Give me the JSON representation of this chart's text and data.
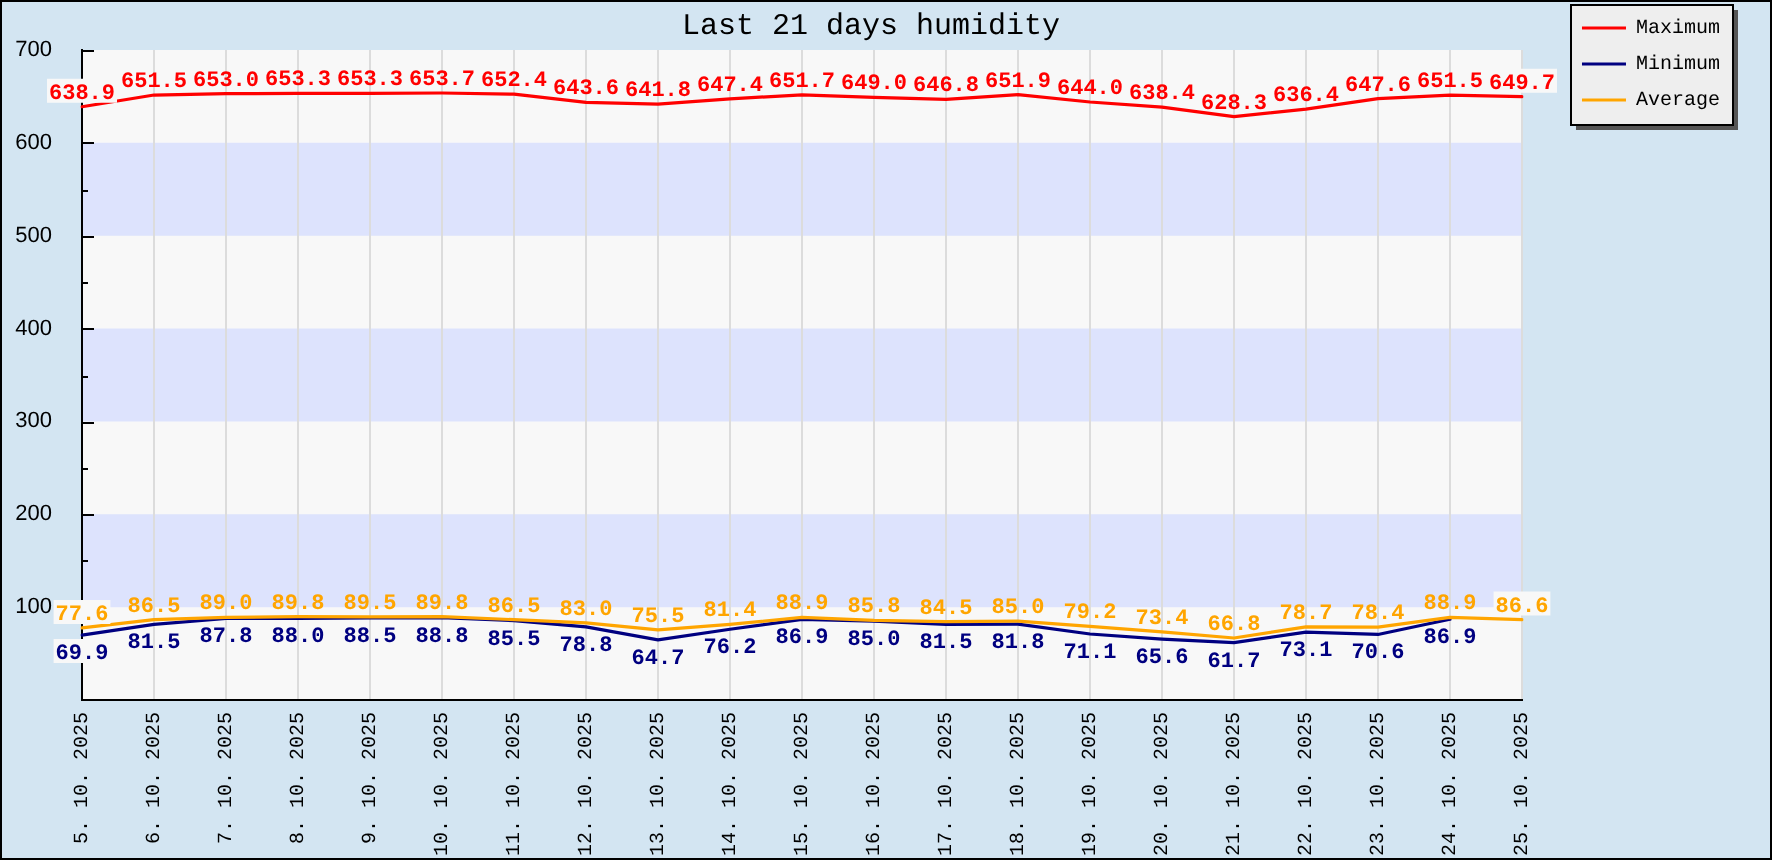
{
  "chart_data": {
    "type": "line",
    "title": "Last 21 days humidity",
    "categories": [
      "5. 10. 2025",
      "6. 10. 2025",
      "7. 10. 2025",
      "8. 10. 2025",
      "9. 10. 2025",
      "10. 10. 2025",
      "11. 10. 2025",
      "12. 10. 2025",
      "13. 10. 2025",
      "14. 10. 2025",
      "15. 10. 2025",
      "16. 10. 2025",
      "17. 10. 2025",
      "18. 10. 2025",
      "19. 10. 2025",
      "20. 10. 2025",
      "21. 10. 2025",
      "22. 10. 2025",
      "23. 10. 2025",
      "24. 10. 2025",
      "25. 10. 2025"
    ],
    "series": [
      {
        "name": "Maximum",
        "color": "#ff0000",
        "values": [
          638.9,
          651.5,
          653.0,
          653.3,
          653.3,
          653.7,
          652.4,
          643.6,
          641.8,
          647.4,
          651.7,
          649.0,
          646.8,
          651.9,
          644.0,
          638.4,
          628.3,
          636.4,
          647.6,
          651.5,
          649.7
        ],
        "value_labels": [
          "638.9",
          "651.5",
          "653.0",
          "653.3",
          "653.3",
          "653.7",
          "652.4",
          "643.6",
          "641.8",
          "647.4",
          "651.7",
          "649.0",
          "646.8",
          "651.9",
          "644.0",
          "638.4",
          "628.3",
          "636.4",
          "647.6",
          "651.5",
          "649.7"
        ]
      },
      {
        "name": "Minimum",
        "color": "#000080",
        "values": [
          69.9,
          81.5,
          87.8,
          88.0,
          88.5,
          88.8,
          85.5,
          78.8,
          64.7,
          76.2,
          86.9,
          85.0,
          81.5,
          81.8,
          71.1,
          65.6,
          61.7,
          73.1,
          70.6,
          86.9,
          null
        ],
        "value_labels": [
          "69.9",
          "81.5",
          "87.8",
          "88.0",
          "88.5",
          "88.8",
          "85.5",
          "78.8",
          "64.7",
          "76.2",
          "86.9",
          "85.0",
          "81.5",
          "81.8",
          "71.1",
          "65.6",
          "61.7",
          "73.1",
          "70.6",
          "86.9",
          null
        ]
      },
      {
        "name": "Average",
        "color": "#ffa500",
        "values": [
          77.6,
          86.5,
          89.0,
          89.8,
          89.5,
          89.8,
          86.5,
          83.0,
          75.5,
          81.4,
          88.9,
          85.8,
          84.5,
          85.0,
          79.2,
          73.4,
          66.8,
          78.7,
          78.4,
          88.9,
          86.6
        ],
        "value_labels": [
          "77.6",
          "86.5",
          "89.0",
          "89.8",
          "89.5",
          "89.8",
          "86.5",
          "83.0",
          "75.5",
          "81.4",
          "88.9",
          "85.8",
          "84.5",
          "85.0",
          "79.2",
          "73.4",
          "66.8",
          "78.7",
          "78.4",
          "88.9",
          "86.6"
        ]
      }
    ],
    "ylim": [
      0,
      700
    ],
    "yticks": [
      {
        "value": 50,
        "label": null
      },
      100,
      {
        "value": 150,
        "label": null
      },
      200,
      {
        "value": 250,
        "label": null
      },
      300,
      {
        "value": 350,
        "label": null
      },
      400,
      {
        "value": 450,
        "label": null
      },
      500,
      {
        "value": 550,
        "label": null
      },
      600,
      {
        "value": 650,
        "label": null
      },
      700
    ],
    "grid": true,
    "legend": "top right"
  }
}
